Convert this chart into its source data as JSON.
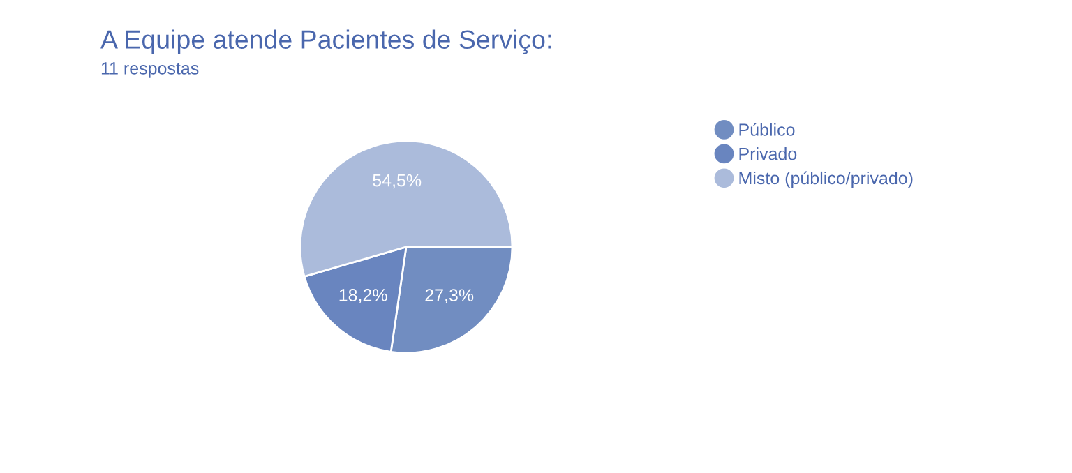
{
  "chart_data": {
    "type": "pie",
    "title": "A Equipe atende Pacientes de Serviço:",
    "subtitle": "11 respostas",
    "categories": [
      "Público",
      "Privado",
      "Misto (público/privado)"
    ],
    "values": [
      27.3,
      18.2,
      54.5
    ],
    "value_labels": [
      "27,3%",
      "18,2%",
      "54,5%"
    ],
    "colors": [
      "#718dc1",
      "#6985bf",
      "#abbbdb"
    ],
    "legend": "right"
  }
}
